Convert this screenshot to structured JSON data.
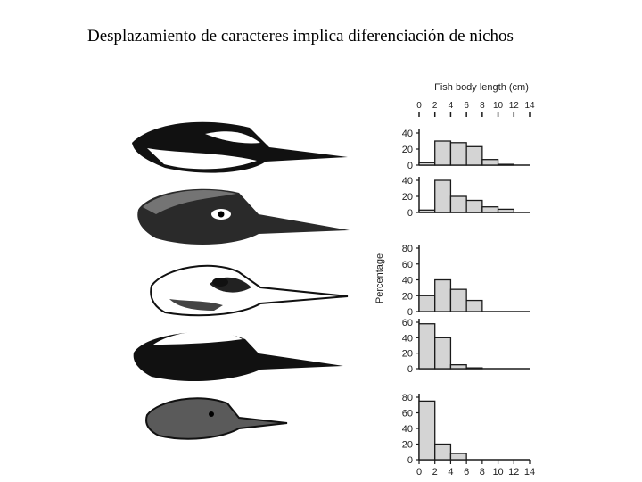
{
  "slide": {
    "title": "Desplazamiento de caracteres implica diferenciación de nichos"
  },
  "colors": {
    "ink": "#1a1a1a",
    "bar_fill": "#d4d4d4",
    "background": "#ffffff"
  },
  "illustrations": {
    "birds": [
      "bird-head-1",
      "bird-head-2",
      "bird-head-3",
      "bird-head-4",
      "bird-head-5"
    ]
  },
  "chart_data": {
    "type": "bar",
    "title": "",
    "xlabel": "Fish body length (cm)",
    "ylabel": "Percentage",
    "x_ticks": [
      "0",
      "2",
      "4",
      "6",
      "8",
      "10",
      "12",
      "14"
    ],
    "xlim": [
      0,
      14
    ],
    "bin_edges": [
      0,
      2,
      4,
      6,
      8,
      10,
      12,
      14
    ],
    "grid": false,
    "legend": "none",
    "panels": [
      {
        "name": "",
        "ylim": [
          0,
          40
        ],
        "y_ticks": [
          "0",
          "20",
          "40"
        ],
        "values": [
          3,
          30,
          28,
          23,
          7,
          1,
          0
        ]
      },
      {
        "name": "",
        "ylim": [
          0,
          40
        ],
        "y_ticks": [
          "0",
          "20",
          "40"
        ],
        "values": [
          3,
          40,
          20,
          15,
          7,
          4,
          0
        ]
      },
      {
        "name": "",
        "ylim": [
          0,
          80
        ],
        "y_ticks": [
          "0",
          "20",
          "40",
          "60",
          "80"
        ],
        "values": [
          20,
          40,
          28,
          14,
          0,
          0,
          0
        ]
      },
      {
        "name": "",
        "ylim": [
          0,
          60
        ],
        "y_ticks": [
          "0",
          "20",
          "40",
          "60"
        ],
        "values": [
          58,
          40,
          5,
          1,
          0,
          0,
          0
        ]
      },
      {
        "name": "",
        "ylim": [
          0,
          80
        ],
        "y_ticks": [
          "0",
          "20",
          "40",
          "60",
          "80"
        ],
        "values": [
          75,
          20,
          8,
          0,
          0,
          0,
          0
        ]
      }
    ]
  }
}
